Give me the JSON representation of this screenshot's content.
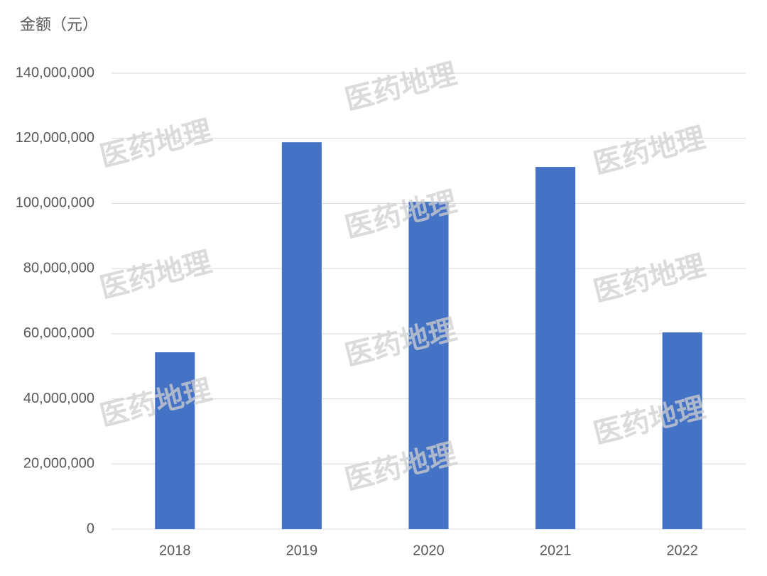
{
  "chart_data": {
    "type": "bar",
    "y_axis_label": "金额（元）",
    "watermark": "医药地理",
    "categories": [
      "2018",
      "2019",
      "2020",
      "2021",
      "2022"
    ],
    "values": [
      54300000,
      118800000,
      100500000,
      111200000,
      60400000
    ],
    "color": "#4472c4",
    "ylim": [
      0,
      140000000
    ],
    "yticks": [
      0,
      {
        "value": 20000000,
        "label": "20,000,000"
      },
      {
        "value": 40000000,
        "label": "40,000,000"
      },
      {
        "value": 60000000,
        "label": "60,000,000"
      },
      {
        "value": 80000000,
        "label": "80,000,000"
      },
      {
        "value": 100000000,
        "label": "100,000,000"
      },
      {
        "value": 120000000,
        "label": "120,000,000"
      },
      {
        "value": 140000000,
        "label": "140,000,000"
      }
    ],
    "grid": true
  }
}
